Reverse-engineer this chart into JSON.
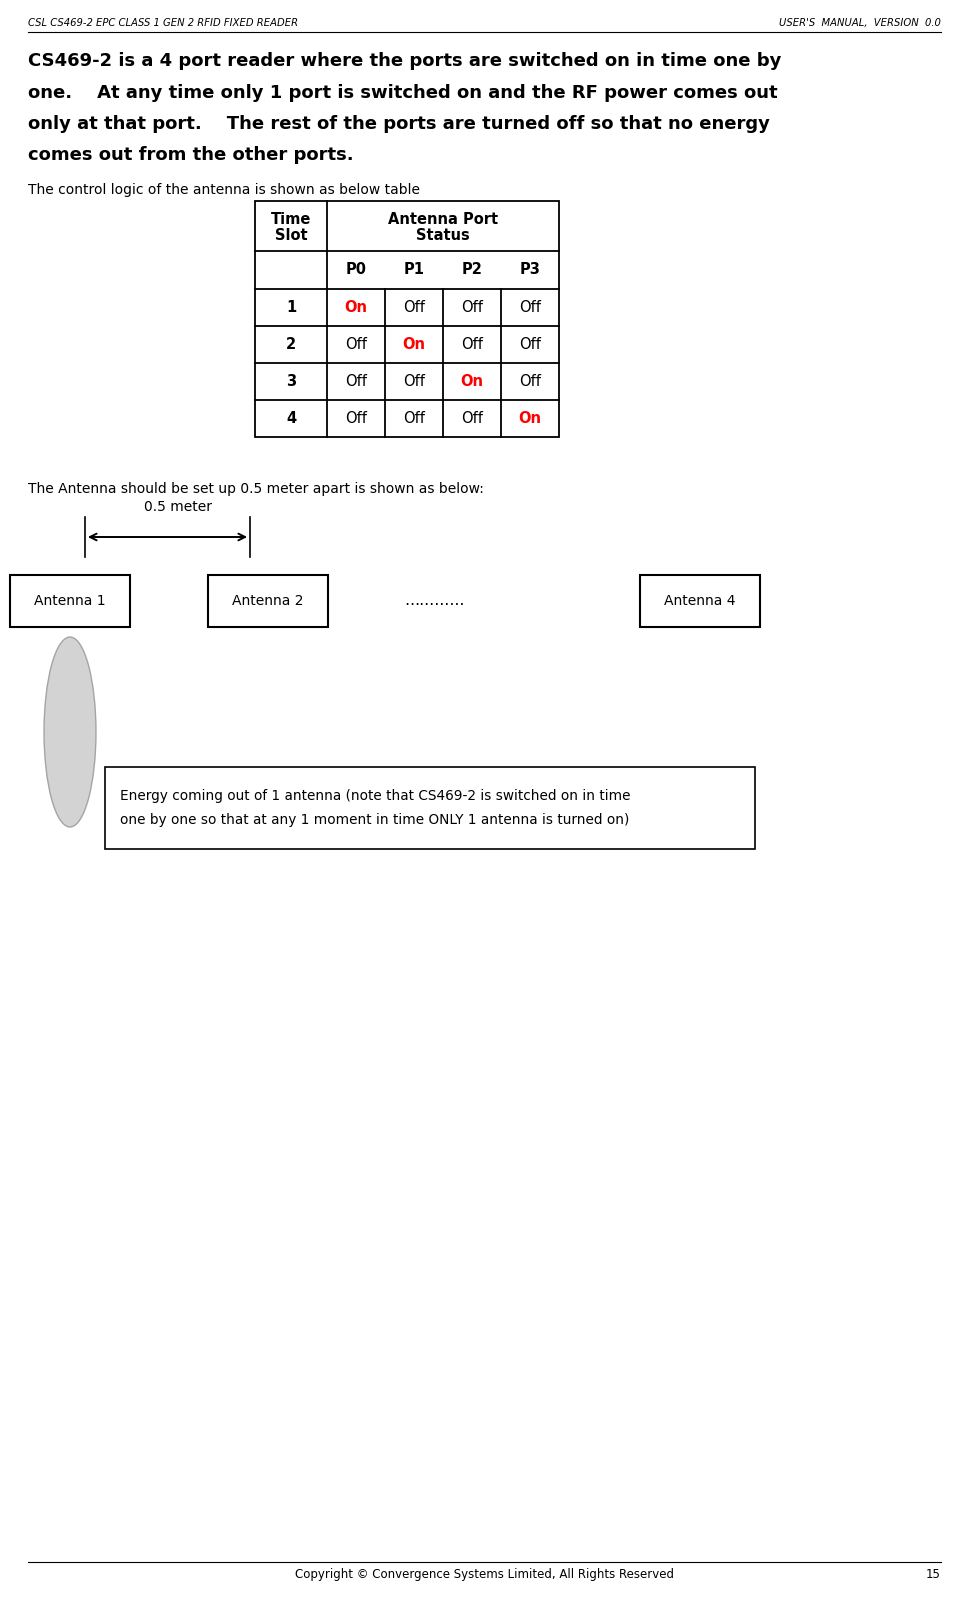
{
  "header_left": "CSL CS469-2 EPC CLASS 1 GEN 2 RFID FIXED READER",
  "header_right": "USER'S  MANUAL,  VERSION  0.0",
  "footer_text": "Copyright © Convergence Systems Limited, All Rights Reserved",
  "footer_page": "15",
  "bold_lines": [
    "CS469-2 is a 4 port reader where the ports are switched on in time one by",
    "one.    At any time only 1 port is switched on and the RF power comes out",
    "only at that port.    The rest of the ports are turned off so that no energy",
    "comes out from the other ports."
  ],
  "normal_text": "The control logic of the antenna is shown as below table",
  "table_sub_headers": [
    "P0",
    "P1",
    "P2",
    "P3"
  ],
  "table_rows": [
    [
      "1",
      "On",
      "Off",
      "Off",
      "Off"
    ],
    [
      "2",
      "Off",
      "On",
      "Off",
      "Off"
    ],
    [
      "3",
      "Off",
      "Off",
      "On",
      "Off"
    ],
    [
      "4",
      "Off",
      "Off",
      "Off",
      "On"
    ]
  ],
  "on_col_per_row": [
    1,
    2,
    3,
    4
  ],
  "antenna_text": "The Antenna should be set up 0.5 meter apart is shown as below:",
  "dimension_label": "0.5 meter",
  "antenna_labels": [
    "Antenna 1",
    "Antenna 2",
    "…………",
    "Antenna 4"
  ],
  "energy_line1": "Energy coming out of 1 antenna (note that CS469-2 is switched on in time",
  "energy_line2": "one by one so that at any 1 moment in time ONLY 1 antenna is turned on)",
  "bg_color": "#ffffff",
  "text_color": "#000000",
  "red_color": "#ff0000"
}
